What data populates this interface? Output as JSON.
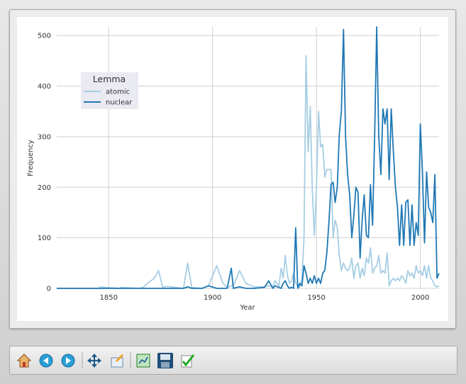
{
  "chart_data": {
    "type": "line",
    "x_label": "Year",
    "y_label": "Frequency",
    "legend_title": "Lemma",
    "legend": "upper left",
    "grid": true,
    "xlim": [
      1825,
      2009
    ],
    "xticks": [
      1850,
      1900,
      1950,
      2000
    ],
    "ylim": [
      0,
      517
    ],
    "yticks": [
      0,
      100,
      200,
      300,
      400,
      500
    ],
    "x": [
      1825,
      1845,
      1846,
      1855,
      1856,
      1865,
      1867,
      1868,
      1872,
      1874,
      1876,
      1878,
      1886,
      1888,
      1890,
      1895,
      1898,
      1902,
      1905,
      1907,
      1909,
      1910,
      1913,
      1916,
      1920,
      1925,
      1927,
      1929,
      1930,
      1932,
      1933,
      1934,
      1935,
      1936,
      1937,
      1938,
      1939,
      1940,
      1941,
      1942,
      1943,
      1944,
      1945,
      1946,
      1947,
      1948,
      1949,
      1950,
      1951,
      1952,
      1953,
      1954,
      1955,
      1956,
      1957,
      1958,
      1959,
      1960,
      1961,
      1962,
      1963,
      1964,
      1965,
      1966,
      1967,
      1968,
      1969,
      1970,
      1971,
      1972,
      1973,
      1974,
      1975,
      1976,
      1977,
      1978,
      1979,
      1980,
      1981,
      1982,
      1983,
      1984,
      1985,
      1986,
      1987,
      1988,
      1989,
      1990,
      1991,
      1992,
      1993,
      1994,
      1995,
      1996,
      1997,
      1998,
      1999,
      2000,
      2001,
      2002,
      2003,
      2004,
      2005,
      2006,
      2007,
      2008,
      2009
    ],
    "series": [
      {
        "name": "atomic",
        "color": "#a6cee3",
        "values": [
          0,
          0,
          3,
          0,
          2,
          0,
          3,
          8,
          20,
          35,
          2,
          4,
          0,
          50,
          2,
          0,
          5,
          45,
          10,
          2,
          5,
          5,
          35,
          10,
          3,
          3,
          5,
          3,
          15,
          5,
          40,
          20,
          65,
          25,
          10,
          15,
          30,
          10,
          5,
          3,
          20,
          100,
          460,
          270,
          360,
          195,
          105,
          200,
          350,
          280,
          285,
          220,
          235,
          235,
          235,
          100,
          135,
          120,
          65,
          35,
          50,
          40,
          35,
          40,
          60,
          20,
          45,
          50,
          20,
          40,
          25,
          60,
          50,
          80,
          30,
          40,
          45,
          65,
          30,
          35,
          30,
          70,
          5,
          15,
          20,
          15,
          20,
          15,
          25,
          20,
          10,
          35,
          25,
          30,
          20,
          45,
          30,
          35,
          25,
          45,
          20,
          45,
          20,
          15,
          5,
          3,
          5
        ]
      },
      {
        "name": "nuclear",
        "color": "#1f78b4",
        "values": [
          0,
          0,
          0,
          0,
          0,
          0,
          0,
          0,
          0,
          0,
          0,
          0,
          0,
          3,
          0,
          0,
          5,
          0,
          0,
          0,
          40,
          0,
          3,
          0,
          0,
          2,
          15,
          0,
          5,
          2,
          0,
          10,
          15,
          5,
          0,
          2,
          0,
          120,
          0,
          10,
          5,
          45,
          30,
          10,
          20,
          10,
          25,
          10,
          20,
          10,
          30,
          35,
          70,
          130,
          205,
          210,
          170,
          200,
          305,
          350,
          512,
          300,
          225,
          185,
          100,
          145,
          200,
          190,
          60,
          135,
          185,
          105,
          100,
          205,
          125,
          300,
          517,
          300,
          225,
          355,
          325,
          355,
          215,
          355,
          270,
          200,
          160,
          85,
          165,
          85,
          170,
          175,
          85,
          165,
          85,
          130,
          105,
          325,
          230,
          90,
          230,
          160,
          150,
          130,
          225,
          20,
          30
        ]
      }
    ]
  }
}
